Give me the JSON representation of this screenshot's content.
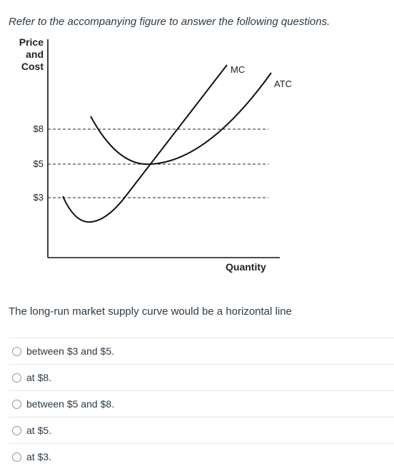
{
  "instructions": "Refer to the accompanying figure to answer the following questions.",
  "figure": {
    "y_axis_label": [
      "Price",
      "and",
      "Cost"
    ],
    "x_axis_label": "Quantity",
    "price_ticks": [
      "$8",
      "$5",
      "$3"
    ],
    "curves": {
      "mc_label": "MC",
      "atc_label": "ATC"
    }
  },
  "question": "The long-run market supply curve would be a horizontal line",
  "answers": [
    {
      "label": "between $3 and $5."
    },
    {
      "label": "at $8."
    },
    {
      "label": "between $5 and $8."
    },
    {
      "label": "at $5."
    },
    {
      "label": "at $3."
    }
  ]
}
